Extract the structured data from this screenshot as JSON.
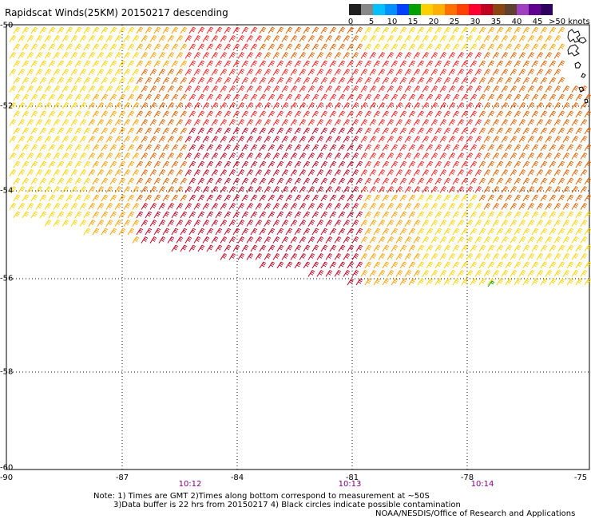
{
  "title": "Rapidscat Winds(25KM) 20150217 descending",
  "legend": {
    "unit_label": ">50 knots",
    "tick_labels": [
      "0",
      "5",
      "10",
      "15",
      "20",
      "25",
      "30",
      "35",
      "40",
      "45"
    ],
    "colors": [
      "#202020",
      "#888888",
      "#00c0ff",
      "#0090ff",
      "#0040ff",
      "#00a000",
      "#ffd000",
      "#ffb000",
      "#ff7000",
      "#ff4000",
      "#ff0030",
      "#c00020",
      "#8b4513",
      "#604030",
      "#a040c0",
      "#600090",
      "#300060"
    ]
  },
  "axes": {
    "lon_labels": [
      "-90",
      "-87",
      "-84",
      "-81",
      "-78",
      "-75"
    ],
    "lat_labels": [
      "-50",
      "-52",
      "-54",
      "-56",
      "-58",
      "-60"
    ]
  },
  "time_labels": [
    "10:12",
    "10:13",
    "10:14"
  ],
  "notes": {
    "line1": "Note: 1) Times are GMT 2)Times along bottom correspond to measurement at ~50S",
    "line2": "3)Data buffer is 22 hrs from 20150217 4) Black circles indicate possible contamination",
    "line3": "NOAA/NESDIS/Office of Research and Applications"
  },
  "wind_colors": {
    "yellow": "#ffd200",
    "orange": "#ffa000",
    "dark_orange": "#e06000",
    "red": "#ff2020",
    "dark_red": "#c00020",
    "green": "#00a000"
  }
}
